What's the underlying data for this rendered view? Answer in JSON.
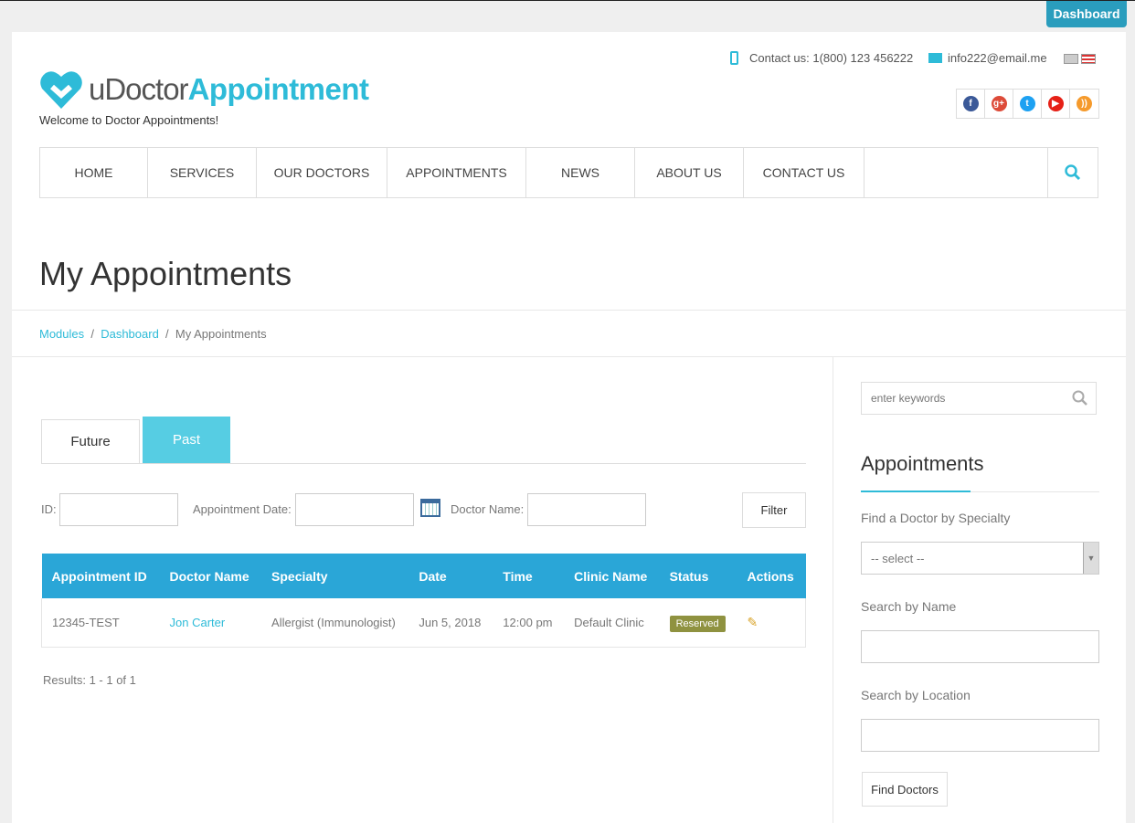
{
  "top": {
    "dashboard": "Dashboard"
  },
  "header": {
    "logo_part1": "uDoctor",
    "logo_part2": "Appointment",
    "tagline": "Welcome to Doctor Appointments!",
    "contact": "Contact us: 1(800) 123 456222",
    "email": "info222@email.me",
    "social": [
      {
        "icon": "facebook-icon",
        "glyph": "f",
        "color": "#3b5998"
      },
      {
        "icon": "google-plus-icon",
        "glyph": "g+",
        "color": "#dd4b39"
      },
      {
        "icon": "twitter-icon",
        "glyph": "t",
        "color": "#1da1f2"
      },
      {
        "icon": "youtube-icon",
        "glyph": "▶",
        "color": "#e62117"
      },
      {
        "icon": "rss-icon",
        "glyph": "))",
        "color": "#f59a2c"
      }
    ]
  },
  "nav": {
    "items": [
      "Home",
      "Services",
      "Our Doctors",
      "Appointments",
      "News",
      "About Us",
      "Contact Us"
    ]
  },
  "page": {
    "title": "My Appointments"
  },
  "breadcrumb": {
    "items": [
      "Modules",
      "Dashboard"
    ],
    "current": "My Appointments"
  },
  "tabs": [
    "Future",
    "Past"
  ],
  "filter": {
    "id_label": "ID:",
    "date_label": "Appointment Date:",
    "doctor_label": "Doctor Name:",
    "button": "Filter"
  },
  "table": {
    "columns": [
      "Appointment ID",
      "Doctor Name",
      "Specialty",
      "Date",
      "Time",
      "Clinic Name",
      "Status",
      "Actions"
    ],
    "rows": [
      {
        "id": "12345-TEST",
        "doctor": "Jon Carter",
        "specialty": "Allergist (Immunologist)",
        "date": "Jun 5, 2018",
        "time": "12:00 pm",
        "clinic": "Default Clinic",
        "status": "Reserved"
      }
    ]
  },
  "results": "Results: 1 - 1 of 1",
  "sidebar": {
    "search_placeholder": "enter keywords",
    "heading": "Appointments",
    "specialty_label": "Find a Doctor by Specialty",
    "specialty_value": "-- select --",
    "name_label": "Search by Name",
    "location_label": "Search by Location",
    "button": "Find Doctors"
  },
  "colors": {
    "accent": "#2ebbd8",
    "table_header": "#2aa6d7",
    "badge": "#8f9240",
    "dashboard": "#2a9dbd"
  }
}
